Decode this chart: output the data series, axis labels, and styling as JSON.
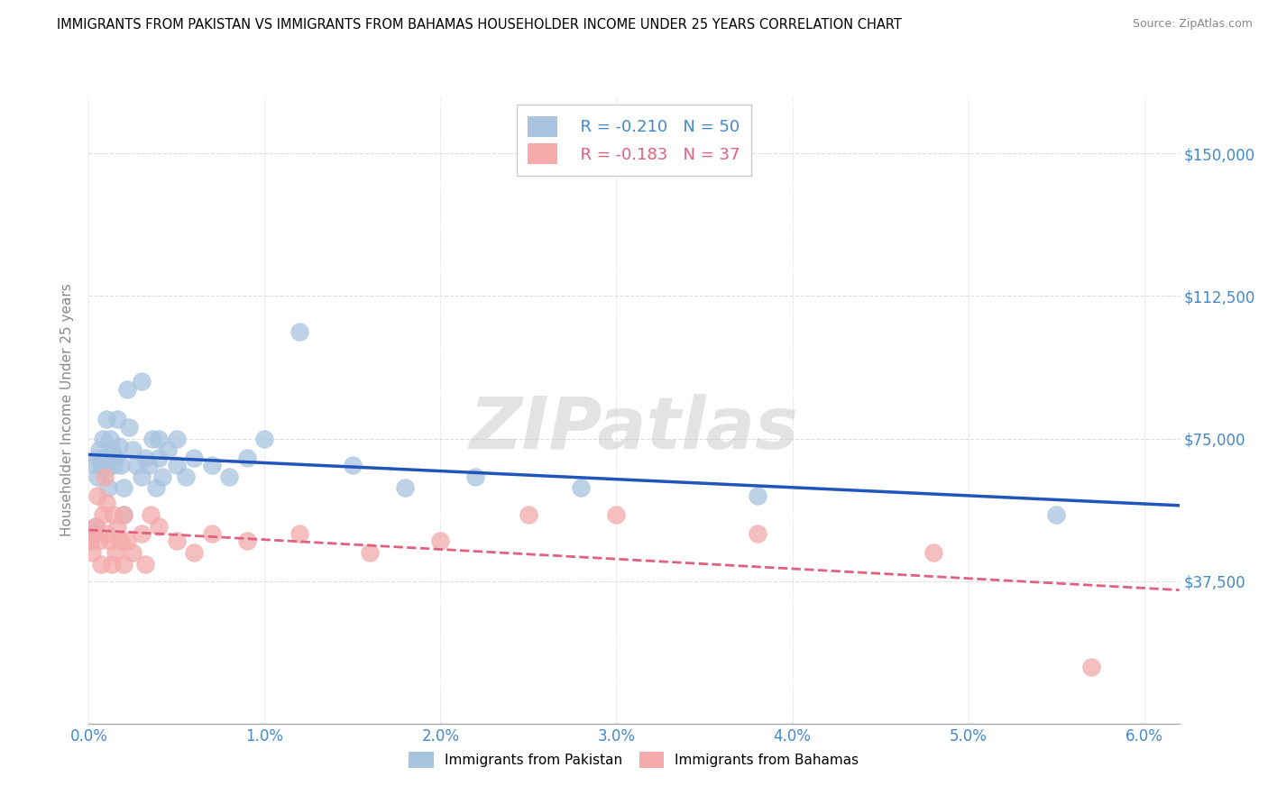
{
  "title": "IMMIGRANTS FROM PAKISTAN VS IMMIGRANTS FROM BAHAMAS HOUSEHOLDER INCOME UNDER 25 YEARS CORRELATION CHART",
  "source": "Source: ZipAtlas.com",
  "ylabel": "Householder Income Under 25 years",
  "xlim": [
    0.0,
    0.062
  ],
  "ylim": [
    0,
    165000
  ],
  "yticks": [
    0,
    37500,
    75000,
    112500,
    150000
  ],
  "ytick_labels": [
    "",
    "$37,500",
    "$75,000",
    "$112,500",
    "$150,000"
  ],
  "xticks": [
    0.0,
    0.01,
    0.02,
    0.03,
    0.04,
    0.05,
    0.06
  ],
  "xtick_labels": [
    "0.0%",
    "1.0%",
    "2.0%",
    "3.0%",
    "4.0%",
    "5.0%",
    "6.0%"
  ],
  "legend_R_pakistan": "R = -0.210",
  "legend_N_pakistan": "N = 50",
  "legend_R_bahamas": "R = -0.183",
  "legend_N_bahamas": "N = 37",
  "pakistan_color": "#A8C4E0",
  "bahamas_color": "#F4AAAA",
  "pakistan_line_color": "#2255BB",
  "bahamas_line_color": "#E06080",
  "tick_color": "#4488CC",
  "watermark": "ZIPatlas",
  "pakistan_x": [
    0.0002,
    0.0003,
    0.0004,
    0.0005,
    0.0005,
    0.0006,
    0.0007,
    0.0008,
    0.0009,
    0.001,
    0.001,
    0.0011,
    0.0012,
    0.0013,
    0.0014,
    0.0015,
    0.0016,
    0.0017,
    0.0018,
    0.002,
    0.002,
    0.0022,
    0.0023,
    0.0025,
    0.0027,
    0.003,
    0.003,
    0.0032,
    0.0034,
    0.0036,
    0.0038,
    0.004,
    0.004,
    0.0042,
    0.0045,
    0.005,
    0.005,
    0.0055,
    0.006,
    0.007,
    0.008,
    0.009,
    0.01,
    0.012,
    0.015,
    0.018,
    0.022,
    0.028,
    0.038,
    0.055
  ],
  "pakistan_y": [
    50000,
    68000,
    52000,
    70000,
    65000,
    72000,
    68000,
    75000,
    70000,
    67000,
    80000,
    62000,
    75000,
    72000,
    68000,
    70000,
    80000,
    73000,
    68000,
    55000,
    62000,
    88000,
    78000,
    72000,
    68000,
    65000,
    90000,
    70000,
    68000,
    75000,
    62000,
    70000,
    75000,
    65000,
    72000,
    68000,
    75000,
    65000,
    70000,
    68000,
    65000,
    70000,
    75000,
    103000,
    68000,
    62000,
    65000,
    62000,
    60000,
    55000
  ],
  "bahamas_x": [
    0.0001,
    0.0002,
    0.0003,
    0.0004,
    0.0005,
    0.0006,
    0.0007,
    0.0008,
    0.0009,
    0.001,
    0.001,
    0.0012,
    0.0013,
    0.0014,
    0.0015,
    0.0016,
    0.0018,
    0.002,
    0.002,
    0.0022,
    0.0025,
    0.003,
    0.0032,
    0.0035,
    0.004,
    0.005,
    0.006,
    0.007,
    0.009,
    0.012,
    0.016,
    0.02,
    0.025,
    0.03,
    0.038,
    0.048,
    0.057
  ],
  "bahamas_y": [
    48000,
    45000,
    50000,
    52000,
    60000,
    48000,
    42000,
    55000,
    65000,
    50000,
    58000,
    48000,
    42000,
    55000,
    45000,
    52000,
    48000,
    55000,
    42000,
    48000,
    45000,
    50000,
    42000,
    55000,
    52000,
    48000,
    45000,
    50000,
    48000,
    50000,
    45000,
    48000,
    55000,
    55000,
    50000,
    45000,
    15000
  ]
}
